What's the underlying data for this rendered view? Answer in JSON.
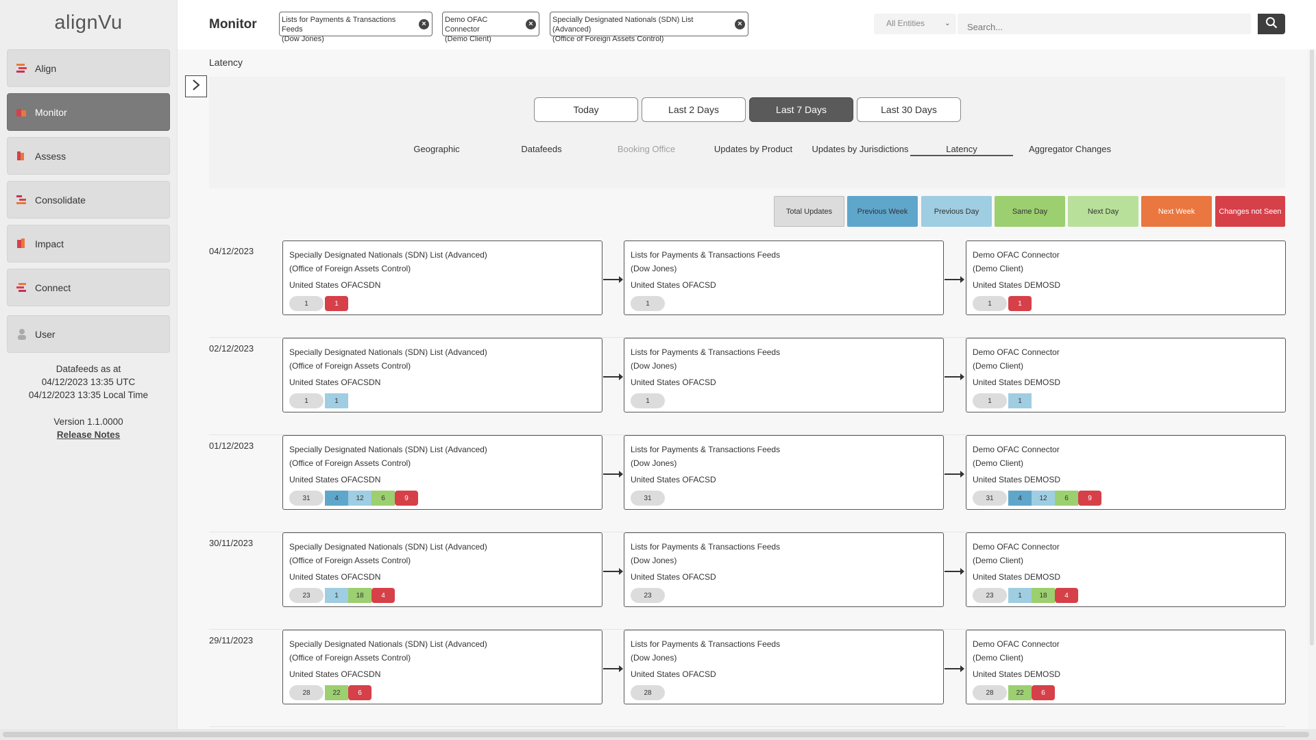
{
  "app": {
    "logo": "alignVu"
  },
  "sidebar": {
    "items": [
      {
        "label": "Align",
        "icon": "align-icon"
      },
      {
        "label": "Monitor",
        "icon": "monitor-icon",
        "active": true
      },
      {
        "label": "Assess",
        "icon": "assess-icon"
      },
      {
        "label": "Consolidate",
        "icon": "consolidate-icon"
      },
      {
        "label": "Impact",
        "icon": "impact-icon"
      },
      {
        "label": "Connect",
        "icon": "connect-icon"
      }
    ],
    "user": {
      "label": "User",
      "icon": "user-icon"
    },
    "info": {
      "line1": "Datafeeds as at",
      "line2": "04/12/2023 13:35 UTC",
      "line3": "04/12/2023 13:35 Local Time",
      "version": "Version 1.1.0000",
      "release_notes": "Release Notes"
    }
  },
  "header": {
    "title": "Monitor",
    "chips": [
      {
        "line1": "Lists for Payments & Transactions Feeds",
        "line2": "(Dow Jones)"
      },
      {
        "line1": "Demo OFAC Connector",
        "line2": "(Demo Client)"
      },
      {
        "line1": "Specially Designated Nationals (SDN) List (Advanced)",
        "line2": "(Office of Foreign Assets Control)"
      }
    ],
    "entities": "All Entities",
    "search_placeholder": "Search..."
  },
  "breadcrumb": "Latency",
  "ranges": [
    {
      "label": "Today"
    },
    {
      "label": "Last 2 Days"
    },
    {
      "label": "Last 7 Days",
      "active": true
    },
    {
      "label": "Last 30 Days"
    }
  ],
  "tabs": [
    {
      "label": "Geographic"
    },
    {
      "label": "Datafeeds"
    },
    {
      "label": "Booking Office",
      "muted": true
    },
    {
      "label": "Updates by Product"
    },
    {
      "label": "Updates by Jurisdictions"
    },
    {
      "label": "Latency",
      "active": true
    },
    {
      "label": "Aggregator Changes"
    }
  ],
  "legend": [
    {
      "label": "Total Updates",
      "color": "#dcdcdc",
      "text": "#333333",
      "border": "#bdbdbd"
    },
    {
      "label": "Previous Week",
      "color": "#5fa6cb",
      "text": "#333333"
    },
    {
      "label": "Previous Day",
      "color": "#9fcde2",
      "text": "#333333"
    },
    {
      "label": "Same Day",
      "color": "#9ccf6f",
      "text": "#333333"
    },
    {
      "label": "Next Day",
      "color": "#b9e09a",
      "text": "#333333"
    },
    {
      "label": "Next Week",
      "color": "#e9773f",
      "text": "#ffffff"
    },
    {
      "label": "Changes not Seen",
      "color": "#d64049",
      "text": "#ffffff"
    }
  ],
  "rows": [
    {
      "date": "04/12/2023",
      "cards": [
        {
          "title1": "Specially Designated Nationals (SDN) List (Advanced)",
          "title2": "(Office of Foreign Assets Control)",
          "code": "United States OFACSDN",
          "badges": [
            {
              "t": "total",
              "v": "1"
            },
            {
              "t": "cns",
              "v": "1"
            }
          ]
        },
        {
          "title1": "Lists for Payments & Transactions Feeds",
          "title2": "(Dow Jones)",
          "code": "United States OFACSD",
          "badges": [
            {
              "t": "total",
              "v": "1"
            }
          ]
        },
        {
          "title1": "Demo OFAC Connector",
          "title2": "(Demo Client)",
          "code": "United States DEMOSD",
          "badges": [
            {
              "t": "total",
              "v": "1"
            },
            {
              "t": "cns",
              "v": "1"
            }
          ]
        }
      ]
    },
    {
      "date": "02/12/2023",
      "cards": [
        {
          "title1": "Specially Designated Nationals (SDN) List (Advanced)",
          "title2": "(Office of Foreign Assets Control)",
          "code": "United States OFACSDN",
          "badges": [
            {
              "t": "total",
              "v": "1"
            },
            {
              "t": "pd",
              "v": "1"
            }
          ]
        },
        {
          "title1": "Lists for Payments & Transactions Feeds",
          "title2": "(Dow Jones)",
          "code": "United States OFACSD",
          "badges": [
            {
              "t": "total",
              "v": "1"
            }
          ]
        },
        {
          "title1": "Demo OFAC Connector",
          "title2": "(Demo Client)",
          "code": "United States DEMOSD",
          "badges": [
            {
              "t": "total",
              "v": "1"
            },
            {
              "t": "pd",
              "v": "1"
            }
          ]
        }
      ]
    },
    {
      "date": "01/12/2023",
      "cards": [
        {
          "title1": "Specially Designated Nationals (SDN) List (Advanced)",
          "title2": "(Office of Foreign Assets Control)",
          "code": "United States OFACSDN",
          "badges": [
            {
              "t": "total",
              "v": "31"
            },
            {
              "t": "pw",
              "v": "4"
            },
            {
              "t": "pd",
              "v": "12"
            },
            {
              "t": "sd",
              "v": "6"
            },
            {
              "t": "cns",
              "v": "9"
            }
          ]
        },
        {
          "title1": "Lists for Payments & Transactions Feeds",
          "title2": "(Dow Jones)",
          "code": "United States OFACSD",
          "badges": [
            {
              "t": "total",
              "v": "31"
            }
          ]
        },
        {
          "title1": "Demo OFAC Connector",
          "title2": "(Demo Client)",
          "code": "United States DEMOSD",
          "badges": [
            {
              "t": "total",
              "v": "31"
            },
            {
              "t": "pw",
              "v": "4"
            },
            {
              "t": "pd",
              "v": "12"
            },
            {
              "t": "sd",
              "v": "6"
            },
            {
              "t": "cns",
              "v": "9"
            }
          ]
        }
      ]
    },
    {
      "date": "30/11/2023",
      "cards": [
        {
          "title1": "Specially Designated Nationals (SDN) List (Advanced)",
          "title2": "(Office of Foreign Assets Control)",
          "code": "United States OFACSDN",
          "badges": [
            {
              "t": "total",
              "v": "23"
            },
            {
              "t": "pd",
              "v": "1"
            },
            {
              "t": "sd",
              "v": "18"
            },
            {
              "t": "cns",
              "v": "4"
            }
          ]
        },
        {
          "title1": "Lists for Payments & Transactions Feeds",
          "title2": "(Dow Jones)",
          "code": "United States OFACSD",
          "badges": [
            {
              "t": "total",
              "v": "23"
            }
          ]
        },
        {
          "title1": "Demo OFAC Connector",
          "title2": "(Demo Client)",
          "code": "United States DEMOSD",
          "badges": [
            {
              "t": "total",
              "v": "23"
            },
            {
              "t": "pd",
              "v": "1"
            },
            {
              "t": "sd",
              "v": "18"
            },
            {
              "t": "cns",
              "v": "4"
            }
          ]
        }
      ]
    },
    {
      "date": "29/11/2023",
      "cards": [
        {
          "title1": "Specially Designated Nationals (SDN) List (Advanced)",
          "title2": "(Office of Foreign Assets Control)",
          "code": "United States OFACSDN",
          "badges": [
            {
              "t": "total",
              "v": "28"
            },
            {
              "t": "sd",
              "v": "22"
            },
            {
              "t": "cns",
              "v": "6"
            }
          ]
        },
        {
          "title1": "Lists for Payments & Transactions Feeds",
          "title2": "(Dow Jones)",
          "code": "United States OFACSD",
          "badges": [
            {
              "t": "total",
              "v": "28"
            }
          ]
        },
        {
          "title1": "Demo OFAC Connector",
          "title2": "(Demo Client)",
          "code": "United States DEMOSD",
          "badges": [
            {
              "t": "total",
              "v": "28"
            },
            {
              "t": "sd",
              "v": "22"
            },
            {
              "t": "cns",
              "v": "6"
            }
          ]
        }
      ]
    }
  ]
}
